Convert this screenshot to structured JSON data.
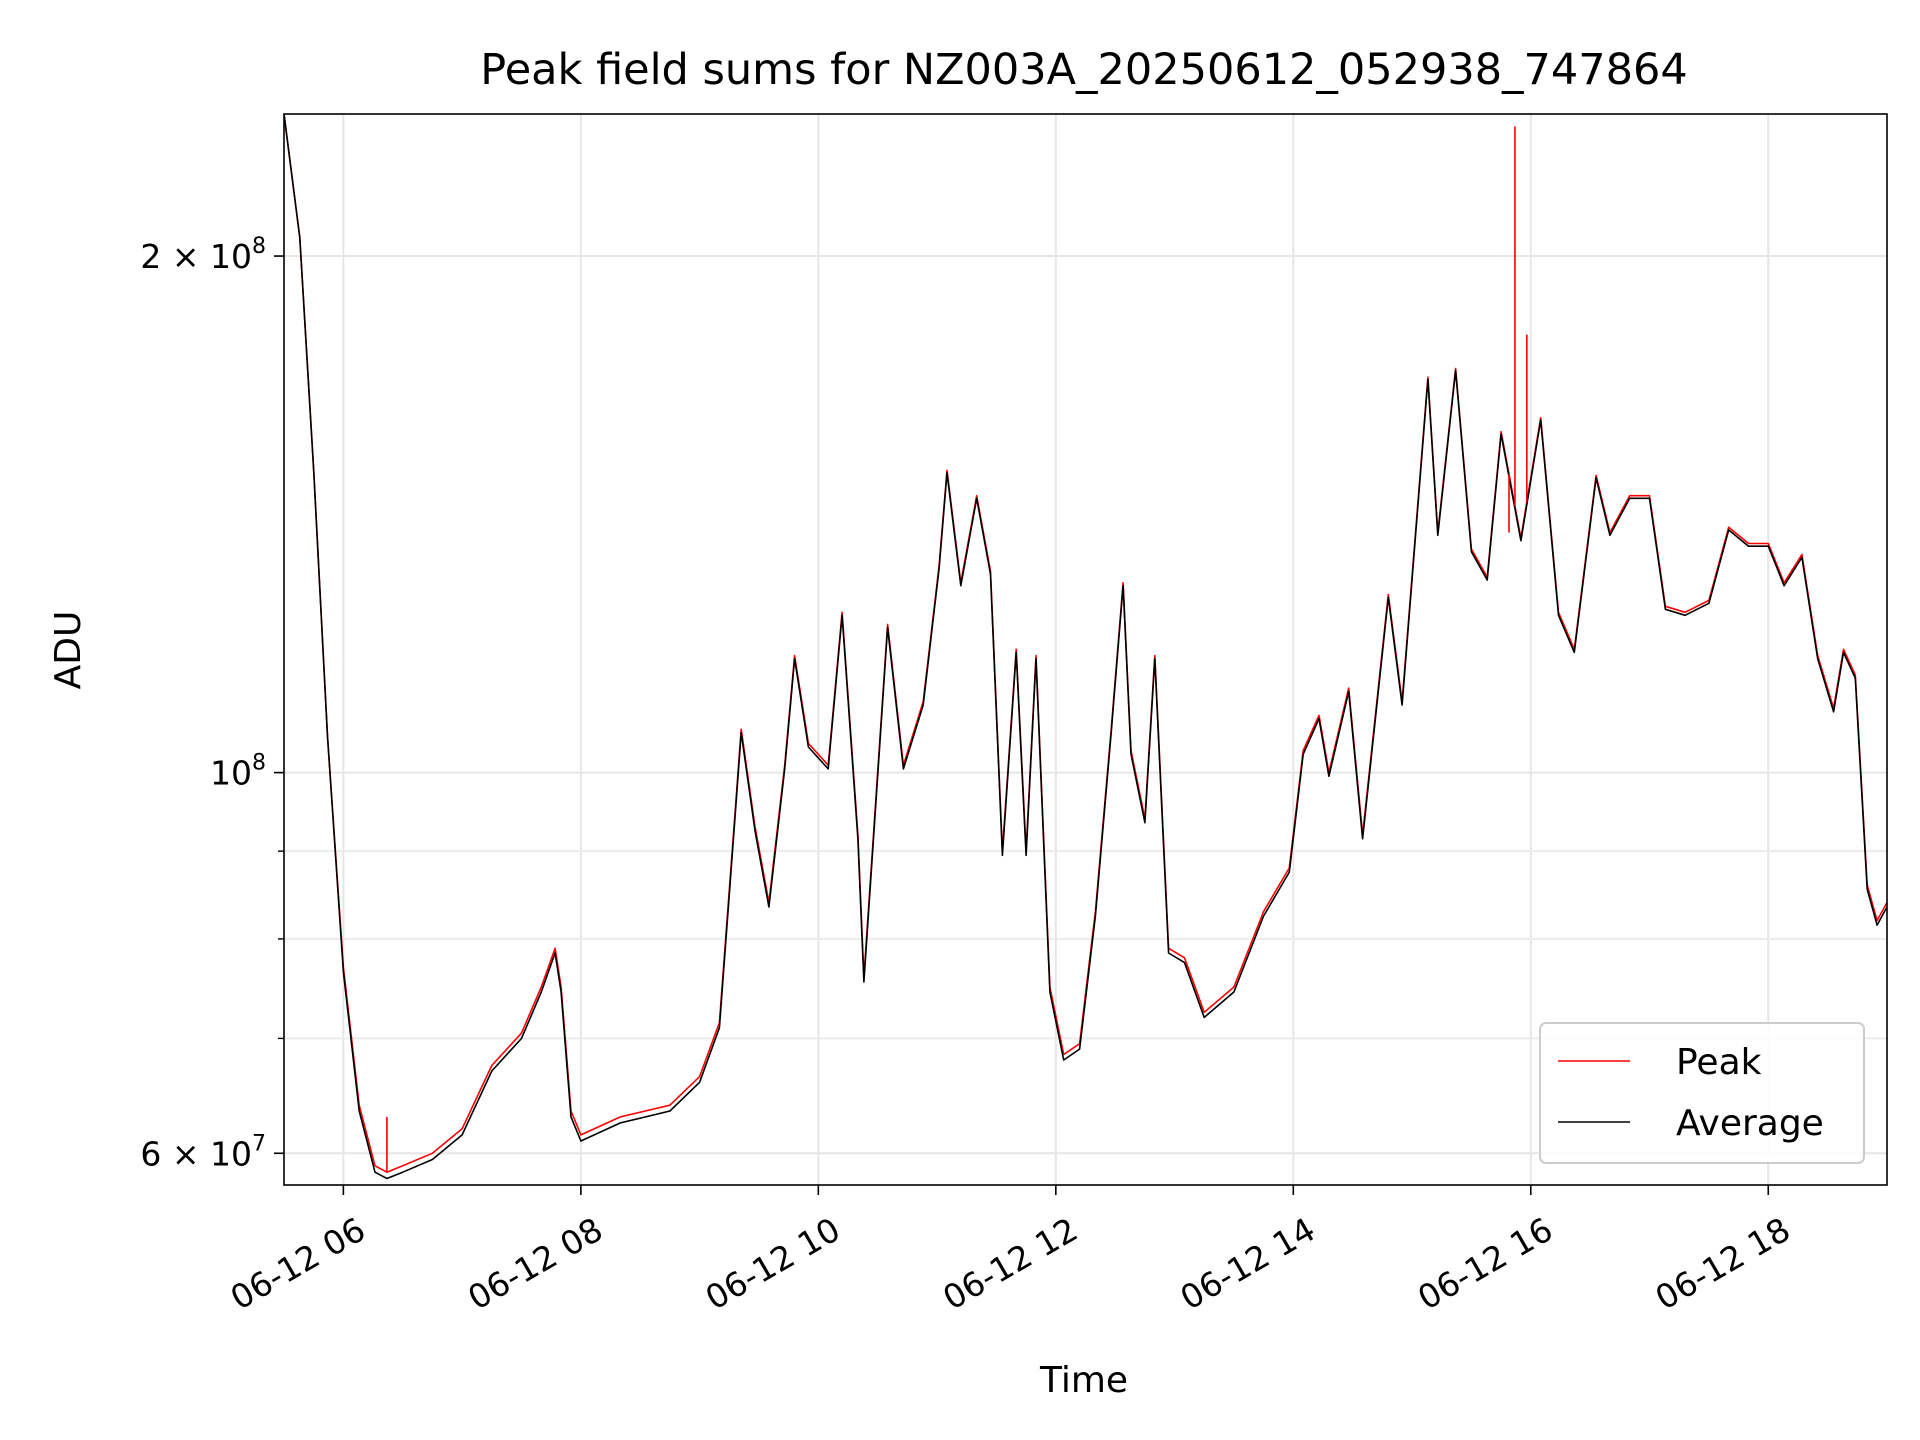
{
  "chart_data": {
    "type": "line",
    "title": "Peak field sums for NZ003A_20250612_052938_747864",
    "xlabel": "Time",
    "ylabel": "ADU",
    "yscale": "log",
    "grid": true,
    "legend_position": "lower-right",
    "xlim": [
      "06-12 05:30",
      "06-12 19:00"
    ],
    "ylim": [
      57500000,
      242000000
    ],
    "x_ticks": [
      "06-12 06",
      "06-12 08",
      "06-12 10",
      "06-12 12",
      "06-12 14",
      "06-12 16",
      "06-12 18"
    ],
    "y_major_ticks": [
      {
        "value": 60000000,
        "base": "6 × 10",
        "exp": "7"
      },
      {
        "value": 100000000,
        "base": "10",
        "exp": "8"
      },
      {
        "value": 200000000,
        "base": "2 × 10",
        "exp": "8"
      }
    ],
    "y_minor_ticks": [
      70000000,
      80000000,
      90000000
    ],
    "series": [
      {
        "name": "Peak",
        "color": "#ff0000",
        "points": [
          [
            "06-12 05:30",
            242000000
          ],
          [
            "06-12 05:38",
            205000000
          ],
          [
            "06-12 05:45",
            150000000
          ],
          [
            "06-12 05:52",
            105000000
          ],
          [
            "06-12 06:00",
            77000000
          ],
          [
            "06-12 06:08",
            64000000
          ],
          [
            "06-12 06:16",
            59000000
          ],
          [
            "06-12 06:22",
            58500000
          ],
          [
            "06-12 06:30",
            59000000
          ],
          [
            "06-12 06:45",
            60000000
          ],
          [
            "06-12 07:00",
            62000000
          ],
          [
            "06-12 07:15",
            67500000
          ],
          [
            "06-12 07:30",
            70500000
          ],
          [
            "06-12 07:40",
            75000000
          ],
          [
            "06-12 07:47",
            79000000
          ],
          [
            "06-12 07:50",
            75000000
          ],
          [
            "06-12 07:55",
            63500000
          ],
          [
            "06-12 08:00",
            61500000
          ],
          [
            "06-12 08:20",
            63000000
          ],
          [
            "06-12 08:45",
            64000000
          ],
          [
            "06-12 09:00",
            66500000
          ],
          [
            "06-12 09:10",
            71500000
          ],
          [
            "06-12 09:18",
            95000000
          ],
          [
            "06-12 09:21",
            106000000
          ],
          [
            "06-12 09:28",
            93000000
          ],
          [
            "06-12 09:35",
            84000000
          ],
          [
            "06-12 09:43",
            101000000
          ],
          [
            "06-12 09:48",
            117000000
          ],
          [
            "06-12 09:55",
            104000000
          ],
          [
            "06-12 10:05",
            101000000
          ],
          [
            "06-12 10:12",
            124000000
          ],
          [
            "06-12 10:20",
            92000000
          ],
          [
            "06-12 10:23",
            76000000
          ],
          [
            "06-12 10:35",
            122000000
          ],
          [
            "06-12 10:43",
            101000000
          ],
          [
            "06-12 10:53",
            110000000
          ],
          [
            "06-12 11:01",
            132000000
          ],
          [
            "06-12 11:05",
            150000000
          ],
          [
            "06-12 11:12",
            129000000
          ],
          [
            "06-12 11:20",
            145000000
          ],
          [
            "06-12 11:27",
            131000000
          ],
          [
            "06-12 11:33",
            90000000
          ],
          [
            "06-12 11:40",
            118000000
          ],
          [
            "06-12 11:45",
            90000000
          ],
          [
            "06-12 11:50",
            117000000
          ],
          [
            "06-12 11:57",
            75000000
          ],
          [
            "06-12 12:04",
            68500000
          ],
          [
            "06-12 12:12",
            69500000
          ],
          [
            "06-12 12:20",
            83000000
          ],
          [
            "06-12 12:28",
            106000000
          ],
          [
            "06-12 12:34",
            129000000
          ],
          [
            "06-12 12:38",
            103000000
          ],
          [
            "06-12 12:45",
            94000000
          ],
          [
            "06-12 12:50",
            117000000
          ],
          [
            "06-12 12:57",
            79000000
          ],
          [
            "06-12 13:05",
            78000000
          ],
          [
            "06-12 13:15",
            72500000
          ],
          [
            "06-12 13:30",
            75000000
          ],
          [
            "06-12 13:45",
            83000000
          ],
          [
            "06-12 13:58",
            88000000
          ],
          [
            "06-12 14:05",
            103000000
          ],
          [
            "06-12 14:13",
            108000000
          ],
          [
            "06-12 14:18",
            100000000
          ],
          [
            "06-12 14:28",
            112000000
          ],
          [
            "06-12 14:35",
            92000000
          ],
          [
            "06-12 14:48",
            127000000
          ],
          [
            "06-12 14:55",
            110000000
          ],
          [
            "06-12 15:08",
            170000000
          ],
          [
            "06-12 15:13",
            138000000
          ],
          [
            "06-12 15:22",
            172000000
          ],
          [
            "06-12 15:30",
            135000000
          ],
          [
            "06-12 15:38",
            130000000
          ],
          [
            "06-12 15:45",
            158000000
          ],
          [
            "06-12 15:55",
            137000000
          ],
          [
            "06-12 16:05",
            161000000
          ],
          [
            "06-12 16:14",
            124000000
          ],
          [
            "06-12 16:22",
            118000000
          ],
          [
            "06-12 16:33",
            149000000
          ],
          [
            "06-12 16:40",
            138000000
          ],
          [
            "06-12 16:50",
            145000000
          ],
          [
            "06-12 17:00",
            145000000
          ],
          [
            "06-12 17:08",
            125000000
          ],
          [
            "06-12 17:18",
            124000000
          ],
          [
            "06-12 17:30",
            126000000
          ],
          [
            "06-12 17:40",
            139000000
          ],
          [
            "06-12 17:50",
            136000000
          ],
          [
            "06-12 18:00",
            136000000
          ],
          [
            "06-12 18:08",
            129000000
          ],
          [
            "06-12 18:17",
            134000000
          ],
          [
            "06-12 18:25",
            117000000
          ],
          [
            "06-12 18:33",
            109000000
          ],
          [
            "06-12 18:38",
            118000000
          ],
          [
            "06-12 18:44",
            114000000
          ],
          [
            "06-12 18:50",
            86000000
          ],
          [
            "06-12 18:55",
            82000000
          ],
          [
            "06-12 19:00",
            84000000
          ]
        ]
      },
      {
        "name": "Average",
        "color": "#000000",
        "points": [
          [
            "06-12 05:30",
            242000000
          ],
          [
            "06-12 05:38",
            205000000
          ],
          [
            "06-12 05:45",
            150000000
          ],
          [
            "06-12 05:52",
            105000000
          ],
          [
            "06-12 06:00",
            76500000
          ],
          [
            "06-12 06:08",
            63500000
          ],
          [
            "06-12 06:16",
            58500000
          ],
          [
            "06-12 06:22",
            58000000
          ],
          [
            "06-12 06:30",
            58500000
          ],
          [
            "06-12 06:45",
            59500000
          ],
          [
            "06-12 07:00",
            61500000
          ],
          [
            "06-12 07:15",
            67000000
          ],
          [
            "06-12 07:30",
            70000000
          ],
          [
            "06-12 07:40",
            74500000
          ],
          [
            "06-12 07:47",
            78500000
          ],
          [
            "06-12 07:50",
            74500000
          ],
          [
            "06-12 07:55",
            63000000
          ],
          [
            "06-12 08:00",
            61000000
          ],
          [
            "06-12 08:20",
            62500000
          ],
          [
            "06-12 08:45",
            63500000
          ],
          [
            "06-12 09:00",
            66000000
          ],
          [
            "06-12 09:10",
            71000000
          ],
          [
            "06-12 09:18",
            94500000
          ],
          [
            "06-12 09:21",
            105500000
          ],
          [
            "06-12 09:28",
            92500000
          ],
          [
            "06-12 09:35",
            83500000
          ],
          [
            "06-12 09:43",
            100500000
          ],
          [
            "06-12 09:48",
            116500000
          ],
          [
            "06-12 09:55",
            103500000
          ],
          [
            "06-12 10:05",
            100500000
          ],
          [
            "06-12 10:12",
            123500000
          ],
          [
            "06-12 10:20",
            91500000
          ],
          [
            "06-12 10:23",
            75500000
          ],
          [
            "06-12 10:35",
            121500000
          ],
          [
            "06-12 10:43",
            100500000
          ],
          [
            "06-12 10:53",
            109500000
          ],
          [
            "06-12 11:01",
            131500000
          ],
          [
            "06-12 11:05",
            149500000
          ],
          [
            "06-12 11:12",
            128500000
          ],
          [
            "06-12 11:20",
            144500000
          ],
          [
            "06-12 11:27",
            130500000
          ],
          [
            "06-12 11:33",
            89500000
          ],
          [
            "06-12 11:40",
            117500000
          ],
          [
            "06-12 11:45",
            89500000
          ],
          [
            "06-12 11:50",
            116500000
          ],
          [
            "06-12 11:57",
            74500000
          ],
          [
            "06-12 12:04",
            68000000
          ],
          [
            "06-12 12:12",
            69000000
          ],
          [
            "06-12 12:20",
            82500000
          ],
          [
            "06-12 12:28",
            105500000
          ],
          [
            "06-12 12:34",
            128500000
          ],
          [
            "06-12 12:38",
            102500000
          ],
          [
            "06-12 12:45",
            93500000
          ],
          [
            "06-12 12:50",
            116500000
          ],
          [
            "06-12 12:57",
            78500000
          ],
          [
            "06-12 13:05",
            77500000
          ],
          [
            "06-12 13:15",
            72000000
          ],
          [
            "06-12 13:30",
            74500000
          ],
          [
            "06-12 13:45",
            82500000
          ],
          [
            "06-12 13:58",
            87500000
          ],
          [
            "06-12 14:05",
            102500000
          ],
          [
            "06-12 14:13",
            107500000
          ],
          [
            "06-12 14:18",
            99500000
          ],
          [
            "06-12 14:28",
            111500000
          ],
          [
            "06-12 14:35",
            91500000
          ],
          [
            "06-12 14:48",
            126500000
          ],
          [
            "06-12 14:55",
            109500000
          ],
          [
            "06-12 15:08",
            169500000
          ],
          [
            "06-12 15:13",
            137500000
          ],
          [
            "06-12 15:22",
            171500000
          ],
          [
            "06-12 15:30",
            134500000
          ],
          [
            "06-12 15:38",
            129500000
          ],
          [
            "06-12 15:45",
            157500000
          ],
          [
            "06-12 15:55",
            136500000
          ],
          [
            "06-12 16:05",
            160500000
          ],
          [
            "06-12 16:14",
            123500000
          ],
          [
            "06-12 16:22",
            117500000
          ],
          [
            "06-12 16:33",
            148500000
          ],
          [
            "06-12 16:40",
            137500000
          ],
          [
            "06-12 16:50",
            144500000
          ],
          [
            "06-12 17:00",
            144500000
          ],
          [
            "06-12 17:08",
            124500000
          ],
          [
            "06-12 17:18",
            123500000
          ],
          [
            "06-12 17:30",
            125500000
          ],
          [
            "06-12 17:40",
            138500000
          ],
          [
            "06-12 17:50",
            135500000
          ],
          [
            "06-12 18:00",
            135500000
          ],
          [
            "06-12 18:08",
            128500000
          ],
          [
            "06-12 18:17",
            133500000
          ],
          [
            "06-12 18:25",
            116500000
          ],
          [
            "06-12 18:33",
            108500000
          ],
          [
            "06-12 18:38",
            117500000
          ],
          [
            "06-12 18:44",
            113500000
          ],
          [
            "06-12 18:50",
            85500000
          ],
          [
            "06-12 18:55",
            81500000
          ],
          [
            "06-12 19:00",
            83500000
          ]
        ]
      }
    ],
    "annotations": [
      {
        "series": "Peak",
        "type": "spike",
        "x": "06-12 06:22",
        "value": 63000000
      },
      {
        "series": "Peak",
        "type": "spike",
        "x": "06-12 15:49",
        "value": 138000000
      },
      {
        "series": "Peak",
        "type": "spike",
        "x": "06-12 15:52",
        "value": 238000000
      },
      {
        "series": "Peak",
        "type": "spike",
        "x": "06-12 15:58",
        "value": 180000000
      }
    ]
  }
}
